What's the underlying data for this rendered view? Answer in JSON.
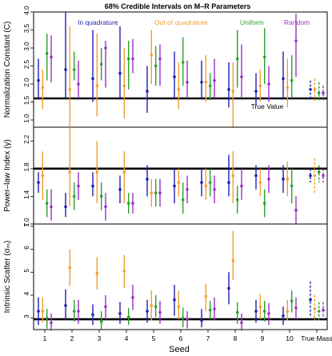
{
  "chart_data": {
    "title": "68% Credible Intervals on M–R Parameters",
    "type": "scatter",
    "legend": {
      "placement": "top",
      "entries": [
        {
          "name": "In quadrature",
          "color": "#1f1fb4"
        },
        {
          "name": "Out of quadrature",
          "color": "#f0a030"
        },
        {
          "name": "Uniform",
          "color": "#2ca02c"
        },
        {
          "name": "Random",
          "color": "#9b30c8"
        }
      ]
    },
    "xlabel": "Seed",
    "categories": [
      "1",
      "2",
      "3",
      "4",
      "5",
      "6",
      "7",
      "8",
      "9",
      "10",
      "True Mass"
    ],
    "panels": [
      {
        "ylabel": "Normalization Constant (C)",
        "ylim": [
          0.8,
          4.0
        ],
        "yticks": [
          "1.0",
          "1.5",
          "2.0",
          "2.5",
          "3.0",
          "3.5",
          "4.0"
        ],
        "truth": 1.6,
        "truth_label": "True Value",
        "series": [
          {
            "name": "In quadrature",
            "points": [
              [
                2.1,
                1.6,
                2.7
              ],
              [
                2.4,
                1.6,
                4.0
              ],
              [
                2.15,
                1.5,
                3.5
              ],
              [
                2.3,
                1.6,
                3.6
              ],
              [
                1.8,
                1.2,
                2.5
              ],
              [
                2.2,
                1.6,
                2.9
              ],
              [
                2.05,
                1.6,
                2.65
              ],
              [
                1.85,
                1.35,
                2.6
              ],
              [
                1.8,
                1.4,
                2.3
              ],
              [
                2.15,
                1.6,
                2.9
              ],
              [
                1.85,
                1.55,
                2.1
              ]
            ]
          },
          {
            "name": "Out of quadrature",
            "points": [
              [
                1.9,
                1.3,
                2.4
              ],
              [
                1.85,
                0.7,
                3.6
              ],
              [
                1.95,
                1.1,
                3.4
              ],
              [
                1.95,
                1.05,
                3.0
              ],
              [
                2.8,
                2.0,
                3.5
              ],
              [
                1.85,
                1.3,
                2.6
              ],
              [
                2.05,
                1.5,
                2.8
              ],
              [
                1.8,
                0.8,
                2.6
              ],
              [
                1.95,
                1.5,
                2.4
              ],
              [
                1.9,
                1.35,
                2.7
              ],
              [
                1.85,
                1.5,
                2.15
              ]
            ]
          },
          {
            "name": "Uniform",
            "points": [
              [
                2.85,
                2.1,
                3.4
              ],
              [
                2.4,
                2.1,
                2.9
              ],
              [
                2.55,
                2.1,
                3.0
              ],
              [
                2.7,
                1.85,
                3.2
              ],
              [
                2.5,
                1.95,
                3.05
              ],
              [
                2.6,
                1.95,
                3.3
              ],
              [
                1.95,
                1.55,
                2.3
              ],
              [
                2.7,
                1.9,
                3.5
              ],
              [
                2.75,
                2.0,
                3.55
              ],
              [
                2.1,
                1.6,
                2.8
              ],
              [
                1.75,
                1.55,
                2.05
              ]
            ]
          },
          {
            "name": "Random",
            "points": [
              [
                2.75,
                2.05,
                3.35
              ],
              [
                2.0,
                1.6,
                2.65
              ],
              [
                3.0,
                1.9,
                3.2
              ],
              [
                2.7,
                2.3,
                3.25
              ],
              [
                2.7,
                1.95,
                3.1
              ],
              [
                2.05,
                1.6,
                2.65
              ],
              [
                2.1,
                1.6,
                2.7
              ],
              [
                2.2,
                1.6,
                3.1
              ],
              [
                2.0,
                1.5,
                2.5
              ],
              [
                3.2,
                2.2,
                3.95
              ],
              [
                1.75,
                1.55,
                1.95
              ]
            ]
          }
        ]
      },
      {
        "ylabel": "Power–law Index (γ)",
        "ylim": [
          1.0,
          2.4
        ],
        "yticks": [
          "1.0",
          "1.4",
          "1.8",
          "2.2"
        ],
        "truth": 1.8,
        "truth_label": "",
        "series": [
          {
            "name": "In quadrature",
            "points": [
              [
                1.6,
                1.45,
                1.75
              ],
              [
                1.25,
                1.1,
                1.45
              ],
              [
                1.55,
                1.4,
                1.75
              ],
              [
                1.5,
                1.3,
                1.7
              ],
              [
                1.65,
                1.4,
                1.85
              ],
              [
                1.55,
                1.3,
                1.8
              ],
              [
                1.6,
                1.4,
                1.8
              ],
              [
                1.6,
                1.4,
                2.0
              ],
              [
                1.7,
                1.5,
                1.85
              ],
              [
                1.65,
                1.45,
                1.85
              ],
              [
                1.7,
                1.6,
                1.8
              ]
            ]
          },
          {
            "name": "Out of quadrature",
            "points": [
              [
                1.7,
                1.35,
                2.05
              ],
              [
                1.75,
                1.25,
                2.4
              ],
              [
                1.75,
                1.3,
                2.2
              ],
              [
                1.75,
                1.3,
                2.05
              ],
              [
                1.45,
                1.25,
                1.65
              ],
              [
                1.6,
                1.4,
                1.8
              ],
              [
                1.55,
                1.35,
                1.8
              ],
              [
                1.7,
                1.3,
                2.05
              ],
              [
                1.6,
                1.4,
                1.8
              ],
              [
                1.65,
                1.4,
                1.9
              ],
              [
                1.7,
                1.45,
                1.95
              ]
            ]
          },
          {
            "name": "Uniform",
            "points": [
              [
                1.3,
                1.1,
                1.5
              ],
              [
                1.4,
                1.2,
                1.6
              ],
              [
                1.4,
                1.2,
                1.6
              ],
              [
                1.3,
                1.15,
                1.45
              ],
              [
                1.45,
                1.25,
                1.65
              ],
              [
                1.35,
                1.15,
                1.6
              ],
              [
                1.6,
                1.4,
                1.8
              ],
              [
                1.35,
                1.15,
                1.55
              ],
              [
                1.3,
                1.1,
                1.5
              ],
              [
                1.55,
                1.3,
                1.8
              ],
              [
                1.75,
                1.6,
                1.85
              ]
            ]
          },
          {
            "name": "Random",
            "points": [
              [
                1.25,
                1.05,
                1.5
              ],
              [
                1.55,
                1.35,
                1.75
              ],
              [
                1.25,
                1.05,
                1.45
              ],
              [
                1.3,
                1.15,
                1.45
              ],
              [
                1.45,
                1.25,
                1.65
              ],
              [
                1.5,
                1.3,
                1.7
              ],
              [
                1.5,
                1.3,
                1.7
              ],
              [
                1.55,
                1.35,
                1.8
              ],
              [
                1.65,
                1.45,
                1.85
              ],
              [
                1.2,
                1.0,
                1.4
              ],
              [
                1.7,
                1.6,
                1.8
              ]
            ]
          }
        ]
      },
      {
        "ylabel": "Intrinsic Scatter (σₘ)",
        "ylim": [
          2.5,
          7.1
        ],
        "yticks": [
          "3",
          "4",
          "5",
          "6",
          "7"
        ],
        "truth": 2.95,
        "truth_label": "",
        "series": [
          {
            "name": "In quadrature",
            "points": [
              [
                3.3,
                2.7,
                3.9
              ],
              [
                3.55,
                2.9,
                4.25
              ],
              [
                3.15,
                2.7,
                3.6
              ],
              [
                3.2,
                2.75,
                3.7
              ],
              [
                3.3,
                2.8,
                3.8
              ],
              [
                3.8,
                3.1,
                4.45
              ],
              [
                2.9,
                2.6,
                3.4
              ],
              [
                4.3,
                3.6,
                5.0
              ],
              [
                3.3,
                2.8,
                3.8
              ],
              [
                3.1,
                2.7,
                3.5
              ],
              [
                3.8,
                3.1,
                4.6
              ]
            ]
          },
          {
            "name": "Out of quadrature",
            "points": [
              [
                3.3,
                2.8,
                3.9
              ],
              [
                5.2,
                4.4,
                6.0
              ],
              [
                4.95,
                4.25,
                5.65
              ],
              [
                5.05,
                4.3,
                5.75
              ],
              [
                3.55,
                2.9,
                4.2
              ],
              [
                3.5,
                2.95,
                4.2
              ],
              [
                3.95,
                3.3,
                4.5
              ],
              [
                5.5,
                4.65,
                6.8
              ],
              [
                3.5,
                2.95,
                4.05
              ],
              [
                3.3,
                2.9,
                3.8
              ],
              [
                3.4,
                2.9,
                4.0
              ]
            ]
          },
          {
            "name": "Uniform",
            "points": [
              [
                3.0,
                2.55,
                3.4
              ],
              [
                3.3,
                2.85,
                3.8
              ],
              [
                2.85,
                2.5,
                3.3
              ],
              [
                3.05,
                2.7,
                3.45
              ],
              [
                3.5,
                3.05,
                4.0
              ],
              [
                3.0,
                2.6,
                3.45
              ],
              [
                3.35,
                2.95,
                3.75
              ],
              [
                3.25,
                2.75,
                3.7
              ],
              [
                3.3,
                2.85,
                3.75
              ],
              [
                3.75,
                3.25,
                4.2
              ],
              [
                3.3,
                2.85,
                3.7
              ]
            ]
          },
          {
            "name": "Random",
            "points": [
              [
                2.8,
                2.45,
                3.2
              ],
              [
                3.3,
                2.75,
                3.8
              ],
              [
                3.5,
                2.95,
                4.0
              ],
              [
                3.9,
                3.35,
                4.45
              ],
              [
                3.25,
                2.75,
                3.75
              ],
              [
                2.95,
                2.55,
                3.3
              ],
              [
                3.4,
                2.9,
                3.9
              ],
              [
                2.8,
                2.45,
                3.2
              ],
              [
                3.2,
                2.7,
                3.65
              ],
              [
                3.45,
                2.95,
                3.9
              ],
              [
                3.35,
                2.95,
                3.7
              ]
            ]
          }
        ]
      }
    ]
  }
}
